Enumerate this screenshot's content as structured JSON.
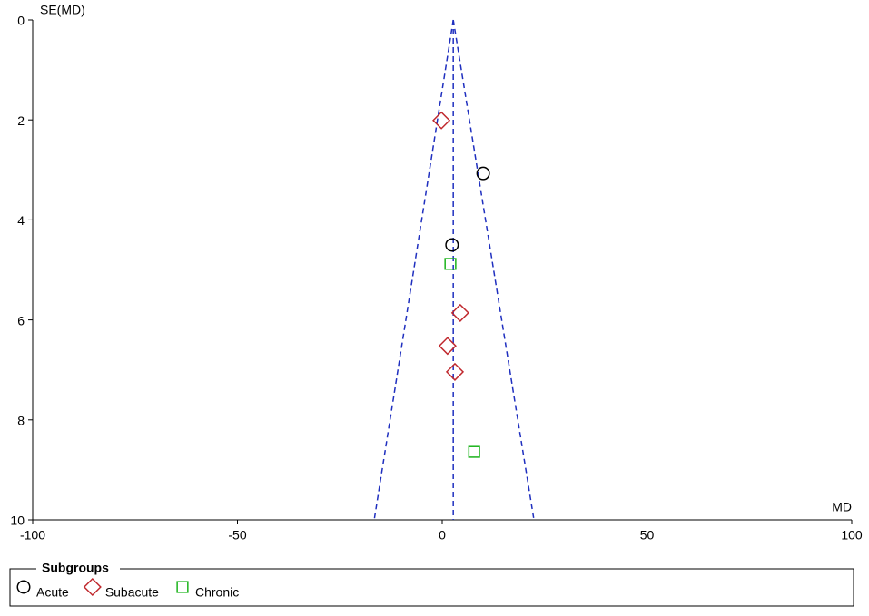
{
  "chart_data": {
    "type": "scatter",
    "x_label": "MD",
    "y_label": "SE(MD)",
    "xlim": [
      -100,
      100
    ],
    "xticks": [
      -100,
      -50,
      0,
      50,
      100
    ],
    "ylim": [
      0,
      10
    ],
    "yticks": [
      0,
      2,
      4,
      6,
      8,
      10
    ],
    "y_inverted": true,
    "funnel": {
      "center": 2.7,
      "bottom_limits": [
        -16.6,
        22.4
      ],
      "color": "#1f2fbf"
    },
    "legend_title": "Subgroups",
    "legend": "bottom",
    "series": [
      {
        "name": "Acute",
        "marker": "circle",
        "color": "#000000",
        "x": [
          10.0,
          2.4
        ],
        "values": [
          3.07,
          4.5
        ]
      },
      {
        "name": "Subacute",
        "marker": "diamond",
        "color": "#c0282d",
        "x": [
          -0.2,
          4.4,
          1.3,
          3.1
        ],
        "values": [
          2.01,
          5.86,
          6.52,
          7.04
        ]
      },
      {
        "name": "Chronic",
        "marker": "square",
        "color": "#1bb31b",
        "x": [
          2.0,
          7.8
        ],
        "values": [
          4.88,
          8.64
        ]
      }
    ]
  }
}
